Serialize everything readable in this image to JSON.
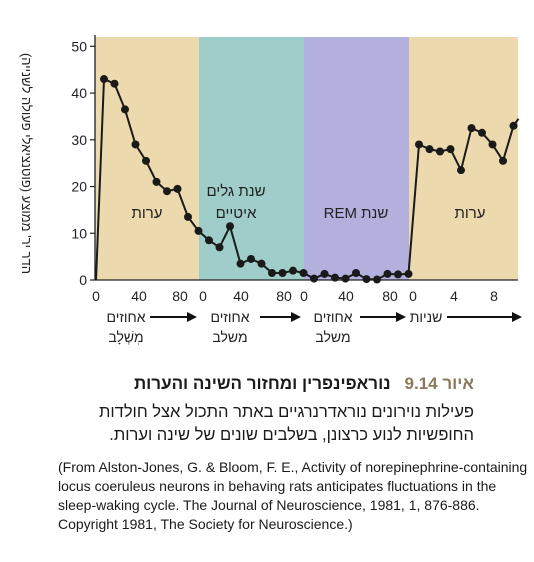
{
  "chart_data": {
    "type": "line",
    "ylabel": "הדר יר' ממוצע (פוטנציאלי פעולה לשנייה)",
    "ylim": [
      0,
      52
    ],
    "yticks": [
      0,
      10,
      20,
      30,
      40,
      50
    ],
    "phases": [
      {
        "label": "ערות",
        "color": "#ecd9ad",
        "start": 0,
        "end": 17
      },
      {
        "label": "שנת גלים איטיים",
        "color": "#9fcdc9",
        "start": 17,
        "end": 34
      },
      {
        "label": "שנת REM",
        "color": "#b3b0dd",
        "start": 34,
        "end": 51
      },
      {
        "label": "ערות",
        "color": "#ecd9ad",
        "start": 51,
        "end": 66
      }
    ],
    "x_tick_groups": [
      {
        "labels": [
          "0",
          "40",
          "80"
        ]
      },
      {
        "labels": [
          "0",
          "40",
          "80"
        ]
      },
      {
        "labels": [
          "0",
          "40",
          "80"
        ]
      },
      {
        "labels": [
          "0",
          "4",
          "8"
        ]
      }
    ],
    "arrows": [
      {
        "label": [
          "אחוזים",
          "מִשְׁלָב"
        ]
      },
      {
        "label": [
          "אחוזים",
          "משלב"
        ]
      },
      {
        "label": [
          "אחוזים",
          "משלב"
        ]
      },
      {
        "label": [
          "שניות"
        ]
      }
    ],
    "series": [
      {
        "values": [
          43,
          42,
          36.5,
          29,
          25.5,
          21,
          19,
          19.5,
          13.5,
          10.5,
          8.5,
          7,
          11.5,
          3.5,
          4.5,
          3.5,
          1.5,
          1.5,
          2,
          1.5,
          0.3,
          1.3,
          0.5,
          0.3,
          1.5,
          0.2,
          0.1,
          1.3,
          1.2,
          1.3,
          29,
          28,
          27.5,
          28,
          23.5,
          32.5,
          31.5,
          29,
          25.5,
          33
        ]
      }
    ]
  },
  "caption": {
    "figure_number": "איור 9.14",
    "title": "נוראפינפרין ומחזור השינה והערות",
    "body": "פעילות נוירונים נוראדרנרגיים באתר התכול אצל חולדות החופשיות לנוע כרצונן, בשלבים שונים של שינה וערות.",
    "source": "(From Alston-Jones, G. & Bloom, F. E., Activity of norepinephrine-containing locus coeruleus neurons in behaving rats anticipates fluctuations in the sleep-waking cycle. The Journal of Neuroscience, 1981, 1, 876-886. Copyright 1981, The Society for Neuroscience.)"
  }
}
